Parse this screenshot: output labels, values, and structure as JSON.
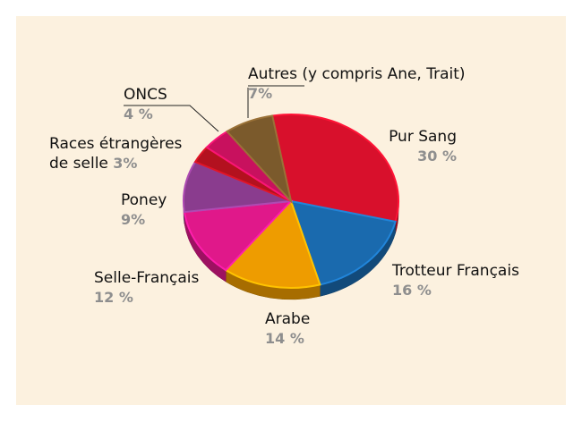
{
  "chart_data": {
    "type": "pie",
    "categories": [
      "Pur Sang",
      "Trotteur Français",
      "Arabe",
      "Selle-Français",
      "Poney",
      "Races étrangères de selle",
      "ONCS",
      "Autres (y compris Ane, Trait)"
    ],
    "values": [
      30,
      16,
      14,
      12,
      9,
      3,
      4,
      7
    ],
    "value_labels": [
      "30 %",
      "16 %",
      "14 %",
      "12 %",
      "9%",
      "3%",
      "4 %",
      "7%"
    ],
    "colors": [
      "#d8102c",
      "#1a6aae",
      "#ee9c00",
      "#e0188a",
      "#8a3c8e",
      "#b3111f",
      "#c8115e",
      "#7b5a2c"
    ]
  }
}
